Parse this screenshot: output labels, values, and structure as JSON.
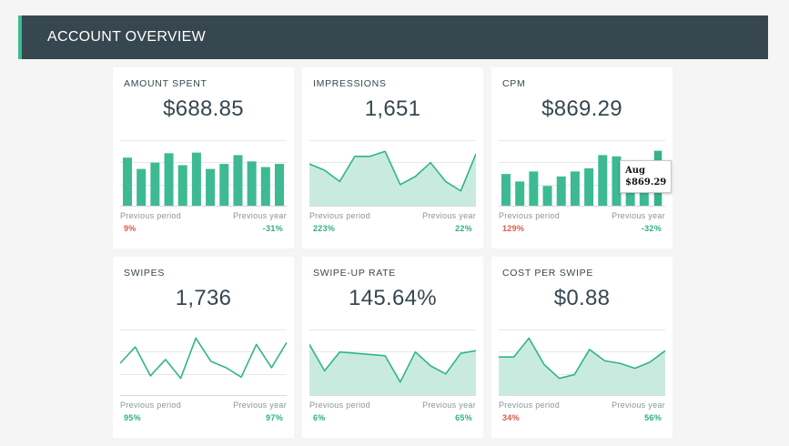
{
  "header": {
    "title": "ACCOUNT OVERVIEW"
  },
  "colors": {
    "accent": "#3dba92",
    "header_bg": "#37474f",
    "positive": "#2fae82",
    "negative": "#e0574a"
  },
  "cards": [
    {
      "title": "AMOUNT SPENT",
      "value": "$688.85",
      "prev_period_label": "Previous period",
      "prev_year_label": "Previous year",
      "prev_period_change": "9%",
      "prev_year_change": "-31%",
      "prev_period_trend": "down",
      "prev_year_trend": "up"
    },
    {
      "title": "IMPRESSIONS",
      "value": "1,651",
      "prev_period_label": "Previous period",
      "prev_year_label": "Previous year",
      "prev_period_change": "223%",
      "prev_year_change": "22%",
      "prev_period_trend": "up",
      "prev_year_trend": "up"
    },
    {
      "title": "CPM",
      "value": "$869.29",
      "prev_period_label": "Previous period",
      "prev_year_label": "Previous year",
      "prev_period_change": "129%",
      "prev_year_change": "-32%",
      "prev_period_trend": "down",
      "prev_year_trend": "up",
      "tooltip": {
        "label": "Aug",
        "value": "$869.29"
      }
    },
    {
      "title": "SWIPES",
      "value": "1,736",
      "prev_period_label": "Previous period",
      "prev_year_label": "Previous year",
      "prev_period_change": "95%",
      "prev_year_change": "97%",
      "prev_period_trend": "up",
      "prev_year_trend": "up"
    },
    {
      "title": "SWIPE-UP RATE",
      "value": "145.64%",
      "prev_period_label": "Previous period",
      "prev_year_label": "Previous year",
      "prev_period_change": "6%",
      "prev_year_change": "65%",
      "prev_period_trend": "up",
      "prev_year_trend": "up"
    },
    {
      "title": "COST PER SWIPE",
      "value": "$0.88",
      "prev_period_label": "Previous period",
      "prev_year_label": "Previous year",
      "prev_period_change": "34%",
      "prev_year_change": "56%",
      "prev_period_trend": "down",
      "prev_year_trend": "up"
    }
  ],
  "chart_data": [
    {
      "type": "bar",
      "values": [
        0.78,
        0.6,
        0.7,
        0.85,
        0.66,
        0.86,
        0.6,
        0.68,
        0.82,
        0.72,
        0.63,
        0.68
      ]
    },
    {
      "type": "area",
      "values": [
        0.68,
        0.58,
        0.4,
        0.8,
        0.8,
        0.88,
        0.35,
        0.48,
        0.7,
        0.4,
        0.25,
        0.84
      ]
    },
    {
      "type": "bar",
      "values": [
        0.52,
        0.4,
        0.56,
        0.33,
        0.48,
        0.56,
        0.61,
        0.82,
        0.8,
        0.7,
        0.6,
        0.9
      ],
      "highlight_index": 11
    },
    {
      "type": "line",
      "values": [
        0.52,
        0.78,
        0.32,
        0.58,
        0.28,
        0.92,
        0.55,
        0.45,
        0.3,
        0.82,
        0.45,
        0.85
      ]
    },
    {
      "type": "area",
      "values": [
        0.82,
        0.4,
        0.7,
        0.68,
        0.66,
        0.64,
        0.22,
        0.7,
        0.48,
        0.35,
        0.68,
        0.72
      ]
    },
    {
      "type": "area",
      "values": [
        0.62,
        0.62,
        0.92,
        0.5,
        0.28,
        0.34,
        0.74,
        0.56,
        0.52,
        0.44,
        0.54,
        0.72
      ]
    }
  ]
}
